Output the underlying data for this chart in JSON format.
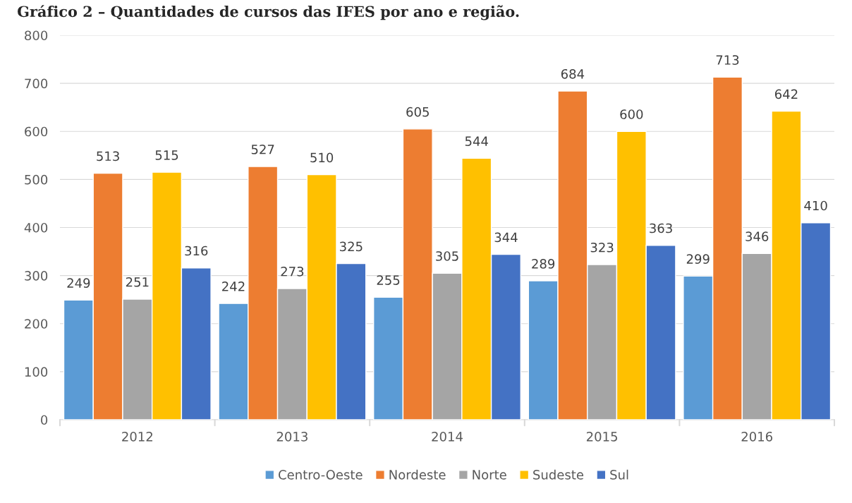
{
  "chart_data": {
    "type": "bar",
    "title": "Gráfico 2 – Quantidades de cursos das IFES por ano e região.",
    "categories": [
      "2012",
      "2013",
      "2014",
      "2015",
      "2016"
    ],
    "series": [
      {
        "name": "Centro-Oeste",
        "color": "#5b9bd5",
        "values": [
          249,
          242,
          255,
          289,
          299
        ]
      },
      {
        "name": "Nordeste",
        "color": "#ed7d31",
        "values": [
          513,
          527,
          605,
          684,
          713
        ]
      },
      {
        "name": "Norte",
        "color": "#a5a5a5",
        "values": [
          251,
          273,
          305,
          323,
          346
        ]
      },
      {
        "name": "Sudeste",
        "color": "#ffc000",
        "values": [
          515,
          510,
          544,
          600,
          642
        ]
      },
      {
        "name": "Sul",
        "color": "#4472c4",
        "values": [
          316,
          325,
          344,
          363,
          410
        ]
      }
    ],
    "ylim": [
      0,
      800
    ],
    "yticks": [
      0,
      100,
      200,
      300,
      400,
      500,
      600,
      700,
      800
    ],
    "grid": "y",
    "legend": "bottom",
    "data_labels": true
  }
}
